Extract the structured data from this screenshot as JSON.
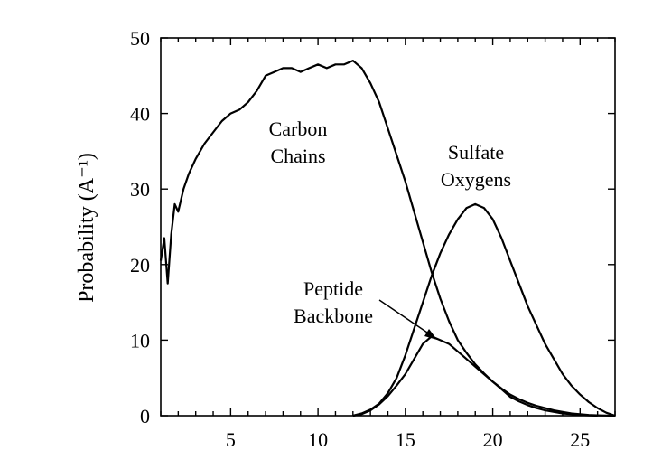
{
  "chart_data": {
    "type": "line",
    "title": "",
    "xlabel": "",
    "ylabel": "Probability (A⁻¹)",
    "xlim": [
      1,
      27
    ],
    "ylim": [
      0,
      50
    ],
    "grid": false,
    "x_ticks": [
      5,
      10,
      15,
      20,
      25
    ],
    "y_ticks": [
      0,
      10,
      20,
      30,
      40,
      50
    ],
    "annotations": [
      {
        "id": "carbon",
        "lines": [
          "Carbon",
          "Chains"
        ]
      },
      {
        "id": "sulfate",
        "lines": [
          "Sulfate",
          "Oxygens"
        ]
      },
      {
        "id": "peptide",
        "lines": [
          "Peptide",
          "Backbone"
        ]
      }
    ],
    "series": [
      {
        "name": "Carbon Chains",
        "x": [
          1,
          1.2,
          1.4,
          1.6,
          1.8,
          2,
          2.3,
          2.6,
          3,
          3.5,
          4,
          4.5,
          5,
          5.5,
          6,
          6.5,
          7,
          7.5,
          8,
          8.5,
          9,
          9.5,
          10,
          10.5,
          11,
          11.5,
          12,
          12.5,
          13,
          13.5,
          14,
          14.5,
          15,
          15.5,
          16,
          16.5,
          17,
          17.5,
          18,
          18.5,
          19,
          19.5,
          20,
          20.5,
          21,
          21.5,
          22,
          22.5,
          23,
          23.5,
          24,
          24.5,
          25,
          25.5,
          26,
          26.5,
          27
        ],
        "y": [
          20.5,
          23.5,
          17.5,
          24,
          28,
          27,
          30,
          32,
          34,
          36,
          37.5,
          39,
          40,
          40.5,
          41.5,
          43,
          45,
          45.5,
          46,
          46,
          45.5,
          46,
          46.5,
          46,
          46.5,
          46.5,
          47,
          46,
          44,
          41.5,
          38,
          34.5,
          31,
          27,
          23,
          19,
          15.5,
          12.5,
          10,
          8.3,
          6.8,
          5.6,
          4.5,
          3.6,
          2.8,
          2.2,
          1.7,
          1.3,
          1.0,
          0.7,
          0.5,
          0.3,
          0.2,
          0.1,
          0.05,
          0.02,
          0
        ]
      },
      {
        "name": "Sulfate Oxygens",
        "x": [
          12,
          12.5,
          13,
          13.5,
          14,
          14.5,
          15,
          15.5,
          16,
          16.5,
          17,
          17.5,
          18,
          18.5,
          19,
          19.5,
          20,
          20.5,
          21,
          21.5,
          22,
          22.5,
          23,
          23.5,
          24,
          24.5,
          25,
          25.5,
          26,
          26.5,
          27
        ],
        "y": [
          0,
          0.3,
          0.8,
          1.6,
          3,
          5,
          8,
          11.5,
          15,
          18.5,
          21.5,
          24,
          26,
          27.5,
          28,
          27.5,
          26,
          23.5,
          20.5,
          17.5,
          14.5,
          12,
          9.5,
          7.5,
          5.5,
          4,
          2.8,
          1.8,
          1.0,
          0.4,
          0
        ]
      },
      {
        "name": "Peptide Backbone",
        "x": [
          12,
          12.5,
          13,
          13.5,
          14,
          14.5,
          15,
          15.5,
          16,
          16.5,
          17,
          17.5,
          18,
          18.5,
          19,
          19.5,
          20,
          20.5,
          21,
          21.5,
          22,
          22.5,
          23,
          23.5,
          24,
          24.5,
          25,
          25.5,
          26
        ],
        "y": [
          0,
          0.2,
          0.7,
          1.5,
          2.6,
          4,
          5.5,
          7.5,
          9.5,
          10.5,
          10,
          9.5,
          8.5,
          7.5,
          6.5,
          5.5,
          4.5,
          3.5,
          2.5,
          1.9,
          1.4,
          1.0,
          0.7,
          0.5,
          0.3,
          0.2,
          0.1,
          0.05,
          0
        ]
      }
    ]
  }
}
